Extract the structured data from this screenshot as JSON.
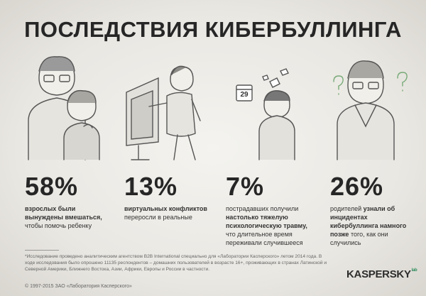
{
  "header": {
    "title": "ПОСЛЕДСТВИЯ КИБЕРБУЛЛИНГА"
  },
  "illustrations": {
    "calendar_day": "29"
  },
  "stats": [
    {
      "percent": "58%",
      "parts": [
        {
          "text": "взрослых были вынуждены вмешаться,",
          "bold": true
        },
        {
          "text": "чтобы помочь ребенку",
          "bold": false
        }
      ]
    },
    {
      "percent": "13%",
      "parts": [
        {
          "text": "виртуальных конфликтов",
          "bold": true
        },
        {
          "text": "переросли в реальные",
          "bold": false
        }
      ]
    },
    {
      "percent": "7%",
      "parts": [
        {
          "text": "пострадавших получили",
          "bold": false
        },
        {
          "text": "настолько тяжелую психологическую травму,",
          "bold": true
        },
        {
          "text": "что длительное время переживали случившееся",
          "bold": false
        }
      ]
    },
    {
      "percent": "26%",
      "parts": [
        {
          "text": "родителей",
          "bold": false
        },
        {
          "text": "узнали об инцидентах кибербуллинга намного позже",
          "bold": true
        },
        {
          "text": "того, как они случились",
          "bold": false
        }
      ]
    }
  ],
  "footer": {
    "footnote": "*Исследование проведено аналитическим агентством B2B International специально для «Лаборатории Касперского» летом 2014 года. В ходе исследования было опрошено 11135 респондентов – домашних пользователей в возрасте 16+, проживающих в странах Латинской и Северной Америки, Ближнего Востока, Азии, Африки, Европы и России в частности.",
    "copyright": "© 1997-2015 ЗАО «Лаборатория Касперского»",
    "logo": "KASPERSKY",
    "logo_sub": "lab"
  }
}
